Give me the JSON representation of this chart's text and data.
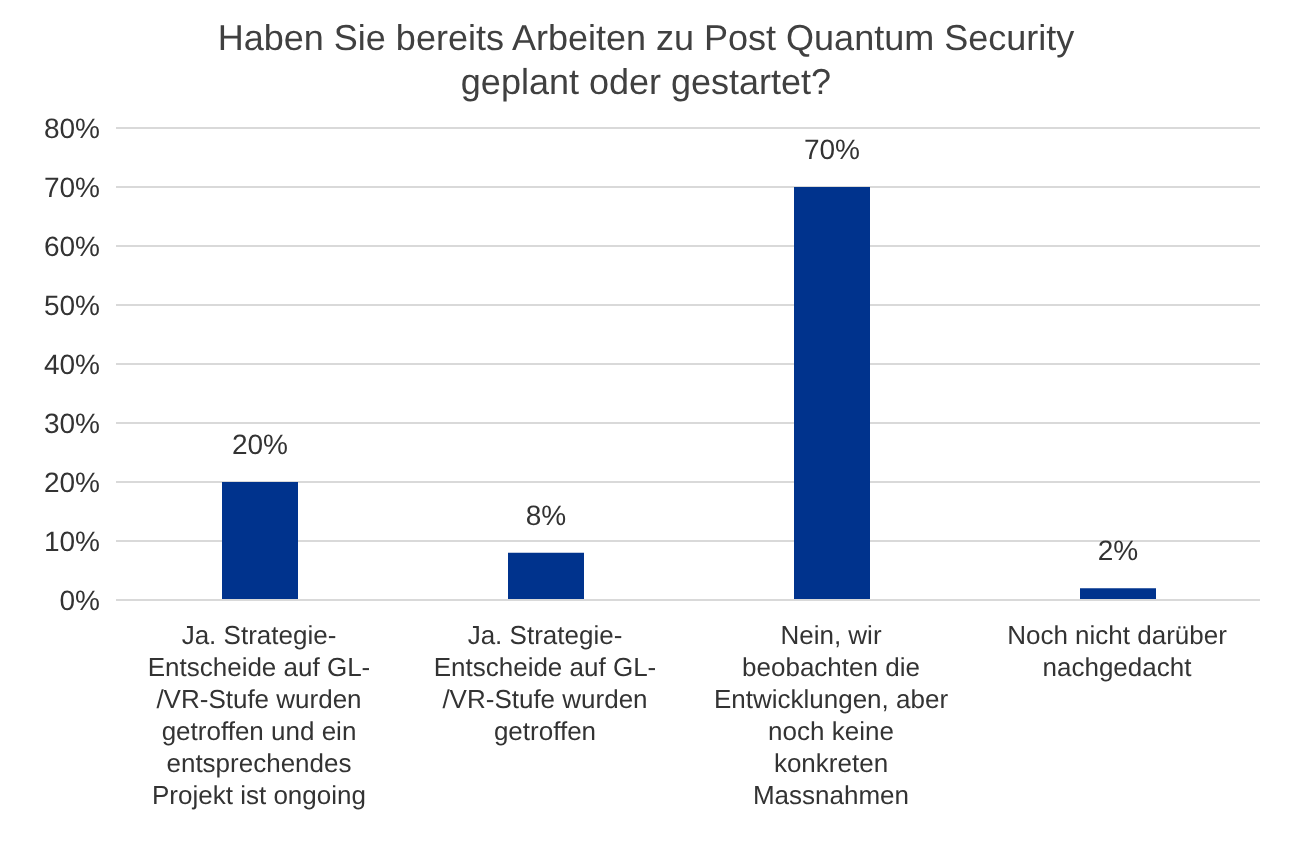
{
  "chart_data": {
    "type": "bar",
    "title": "Haben Sie bereits Arbeiten zu Post Quantum Security geplant oder gestartet?",
    "categories": [
      "Ja. Strategie-Entscheide auf GL-/VR-Stufe wurden getroffen und ein entsprechendes Projekt ist ongoing",
      "Ja. Strategie-Entscheide auf GL-/VR-Stufe wurden getroffen",
      "Nein, wir beobachten die Entwicklungen, aber noch keine konkreten Massnahmen",
      "Noch nicht darüber nachgedacht"
    ],
    "values": [
      20,
      8,
      70,
      2
    ],
    "value_labels": [
      "20%",
      "8%",
      "70%",
      "2%"
    ],
    "color": "#00338d",
    "ylim": [
      0,
      80
    ],
    "yticks": [
      {
        "value": 0,
        "label": "0%"
      },
      {
        "value": 10,
        "label": "10%"
      },
      {
        "value": 20,
        "label": "20%"
      },
      {
        "value": 30,
        "label": "30%"
      },
      {
        "value": 40,
        "label": "40%"
      },
      {
        "value": 50,
        "label": "50%"
      },
      {
        "value": 60,
        "label": "60%"
      },
      {
        "value": 70,
        "label": "70%"
      },
      {
        "value": 80,
        "label": "80%"
      }
    ],
    "grid": "y",
    "legend": false
  }
}
